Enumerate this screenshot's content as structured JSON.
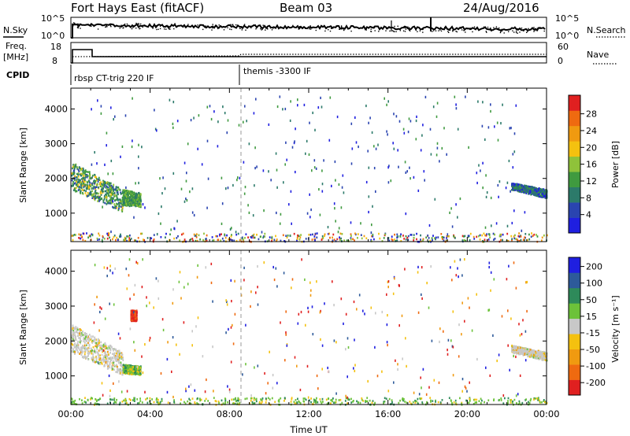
{
  "header": {
    "title": "Fort Hays East (fitACF)",
    "beam": "Beam 03",
    "date": "24/Aug/2016"
  },
  "noise_panel": {
    "left_label": "N.Sky",
    "right_label": "N.Search",
    "left_ticks": [
      "10^5",
      "10^0"
    ],
    "right_ticks": [
      "10^5",
      "10^0"
    ]
  },
  "freq_panel": {
    "left_label_line1": "Freq.",
    "left_label_line2": "[MHz]",
    "right_label": "Nave",
    "left_ticks": [
      "18",
      "8"
    ],
    "right_ticks": [
      "60",
      "0"
    ]
  },
  "cpid": {
    "label": "CPID",
    "segments": [
      {
        "start_hour": 0,
        "text": "rbsp CT-trig 220 IF"
      },
      {
        "start_hour": 8.6,
        "text": "themis -3300 IF"
      }
    ]
  },
  "chart_data": [
    {
      "type": "heatmap",
      "panel": "power",
      "ylabel": "Slant Range [km]",
      "xlabel": "",
      "xlim": [
        0,
        24
      ],
      "ylim": [
        180,
        4600
      ],
      "yticks": [
        "1000",
        "2000",
        "3000",
        "4000"
      ],
      "colorbar": {
        "label": "Power [dB]",
        "ticks": [
          "4",
          "8",
          "12",
          "16",
          "20",
          "24",
          "28"
        ],
        "range": [
          0,
          31
        ]
      },
      "echo_regions": [
        {
          "t0": 0.0,
          "t1": 2.6,
          "r_top": [
            2500,
            1700
          ],
          "r_bot": [
            1700,
            1050
          ],
          "dominant": "green-yellow"
        },
        {
          "t0": 2.6,
          "t1": 3.5,
          "r_top": [
            1700,
            1600
          ],
          "r_bot": [
            1250,
            1200
          ],
          "dominant": "green"
        },
        {
          "t0": 22.2,
          "t1": 24.0,
          "r_top": [
            1900,
            1700
          ],
          "r_bot": [
            1700,
            1450
          ],
          "dominant": "blue-green"
        },
        {
          "t0": 0.0,
          "t1": 24.0,
          "r_top": [
            450,
            450
          ],
          "r_bot": [
            200,
            200
          ],
          "dominant": "mixed"
        }
      ]
    },
    {
      "type": "heatmap",
      "panel": "velocity",
      "ylabel": "Slant Range [km]",
      "xlabel": "Time UT",
      "xlim": [
        0,
        24
      ],
      "ylim": [
        180,
        4600
      ],
      "yticks": [
        "1000",
        "2000",
        "3000",
        "4000"
      ],
      "xticks": [
        "00:00",
        "04:00",
        "08:00",
        "12:00",
        "16:00",
        "20:00",
        "00:00"
      ],
      "colorbar": {
        "label": "Velocity [m s⁻¹]",
        "ticks": [
          "200",
          "100",
          "50",
          "15",
          "-15",
          "-50",
          "-100",
          "-200"
        ]
      },
      "echo_regions": [
        {
          "t0": 0.0,
          "t1": 2.6,
          "r_top": [
            2500,
            1700
          ],
          "r_bot": [
            1700,
            1050
          ],
          "dominant": "grey"
        },
        {
          "t0": 2.6,
          "t1": 3.5,
          "r_top": [
            1350,
            1300
          ],
          "r_bot": [
            1100,
            1050
          ],
          "dominant": "green"
        },
        {
          "t0": 3.0,
          "t1": 3.3,
          "r_top": [
            2900,
            2900
          ],
          "r_bot": [
            2600,
            2600
          ],
          "dominant": "red"
        },
        {
          "t0": 22.2,
          "t1": 24.0,
          "r_top": [
            1900,
            1700
          ],
          "r_bot": [
            1700,
            1450
          ],
          "dominant": "grey"
        },
        {
          "t0": 0.0,
          "t1": 24.0,
          "r_top": [
            400,
            400
          ],
          "r_bot": [
            200,
            200
          ],
          "dominant": "green"
        }
      ]
    }
  ],
  "colors": {
    "power_scale": [
      "#1f1fe0",
      "#2a44b0",
      "#2c7a6a",
      "#3f9a3f",
      "#8fc23a",
      "#f4c10f",
      "#f09a10",
      "#ef6a10",
      "#e02020"
    ],
    "velocity_scale": [
      "#1f1fe0",
      "#2d5a9a",
      "#2e8a5a",
      "#6cc23a",
      "#c8c8c8",
      "#f4c10f",
      "#f09a10",
      "#ef6a10",
      "#e02020"
    ]
  }
}
